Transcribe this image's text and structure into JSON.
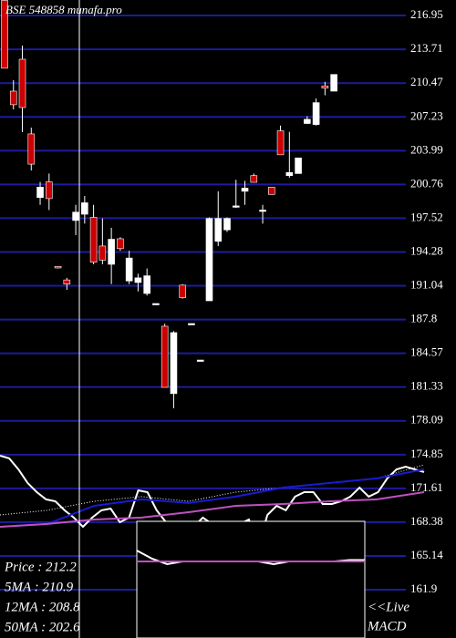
{
  "chart_data": {
    "type": "candlestick",
    "title": "BSE 548858 munafa.pro",
    "ylim": [
      157.27,
      218.44
    ],
    "yticks": [
      216.95,
      213.71,
      210.47,
      207.23,
      203.99,
      200.76,
      197.52,
      194.28,
      191.04,
      187.8,
      184.57,
      181.33,
      178.09,
      174.85,
      171.61,
      168.38,
      165.14,
      161.9
    ],
    "grid": true,
    "grid_color": "#1c1c9c",
    "up_color": "#ffffff",
    "down_color": "#cc0000",
    "open": [
      218.4,
      209.7,
      212.76,
      205.6,
      199.5,
      201,
      192.9,
      191.6,
      197.3,
      197.9,
      197.6,
      194.85,
      193.1,
      195.55,
      191.5,
      191.35,
      190.3,
      189.34,
      187.16,
      180.7,
      191.1,
      187.42,
      183.92,
      189.6,
      195.3,
      196.4,
      198.7,
      200.1,
      201.6,
      198.3,
      200.5,
      205.9,
      201.6,
      201.8,
      206.6,
      206.5,
      210.2,
      209.7
    ],
    "high": [
      218.4,
      210.75,
      214.07,
      206.2,
      201,
      201.8,
      192.9,
      191.8,
      198.8,
      199.65,
      198.8,
      197.5,
      196.6,
      195.7,
      194.4,
      192.2,
      192.7,
      189.34,
      187.4,
      186.7,
      191.2,
      187.42,
      183.92,
      197.6,
      200.1,
      197.6,
      201.2,
      201.1,
      201.8,
      198.8,
      200.5,
      206.4,
      205.8,
      203.3,
      207.3,
      209,
      210.6,
      211.3
    ],
    "low": [
      211.9,
      207.95,
      205.77,
      202.1,
      198.8,
      198.3,
      192.7,
      190.65,
      195.9,
      197,
      193.1,
      193.1,
      191.2,
      194.4,
      191.2,
      190.5,
      190.1,
      189.34,
      181.3,
      179.3,
      189.8,
      187.42,
      183.92,
      189.6,
      194.85,
      196.2,
      198.5,
      198.8,
      200.96,
      197,
      199.8,
      203.6,
      201.4,
      201.8,
      206.55,
      206.4,
      209.3,
      209.7
    ],
    "close": [
      211.9,
      208.4,
      208.13,
      202.7,
      200.5,
      199.4,
      192.75,
      191.2,
      198.1,
      199,
      193.3,
      193.5,
      195.5,
      194.6,
      193.7,
      191.8,
      192,
      189.34,
      181.3,
      186.55,
      189.9,
      187.42,
      183.92,
      197.5,
      197.5,
      197.5,
      198.7,
      200.4,
      200.96,
      198.3,
      199.8,
      203.6,
      201.9,
      203.3,
      207,
      208.6,
      210,
      211.3
    ],
    "lines": [
      {
        "color": "#ffffff",
        "style": "solid",
        "values": [
          174.75,
          174.49,
          173.44,
          172.13,
          171.25,
          170.56,
          170.38,
          169.51,
          168.81,
          167.93,
          168.81,
          169.51,
          169.68,
          168.37,
          168.81,
          171.43,
          171.25,
          169.51,
          168.37,
          167.93,
          167.93,
          167.93,
          168.81,
          168.2,
          166.01,
          166.45,
          168.2,
          168.63,
          166.01,
          169.07,
          169.94,
          169.51,
          170.82,
          171.25,
          171.25,
          170.12,
          170.12,
          170.38,
          170.82,
          171.69,
          170.82,
          171.25,
          172.57,
          173.44,
          173.7,
          173.44,
          173.18
        ]
      },
      {
        "color": "#ffffff",
        "style": "dotted",
        "values": [
          169.07,
          169.51,
          170.38,
          170.82,
          170.38,
          171.25,
          171.69,
          172.13,
          172.57,
          173.88
        ]
      },
      {
        "color": "#1a1ad0",
        "style": "solid",
        "values": [
          167.93,
          168.2,
          169.94,
          170.56,
          170.21,
          170.82,
          171.69,
          172.13,
          172.57,
          173.44
        ]
      },
      {
        "color": "#c050c0",
        "style": "solid",
        "values": [
          167.93,
          168.2,
          168.63,
          168.81,
          169.33,
          169.94,
          170.12,
          170.38,
          170.56,
          171.25
        ]
      }
    ],
    "info": [
      "Price   : 212.2",
      "5MA : 210.9",
      "12MA : 208.8",
      "50MA : 202.6"
    ],
    "macd": {
      "label": [
        "<<Live",
        "MACD"
      ],
      "ylim": [
        -1,
        1
      ],
      "series": [
        {
          "color": "#ffffff",
          "values": [
            0.4,
            0.1,
            -0.1,
            0,
            0,
            0,
            0,
            0,
            0,
            -0.1,
            0,
            0,
            0,
            0,
            0.05,
            0.05
          ]
        },
        {
          "color": "#c050c0",
          "values": [
            0,
            0,
            0,
            0,
            0,
            0,
            0,
            0,
            0,
            0,
            0,
            0,
            0,
            0,
            0,
            0
          ]
        }
      ]
    }
  }
}
